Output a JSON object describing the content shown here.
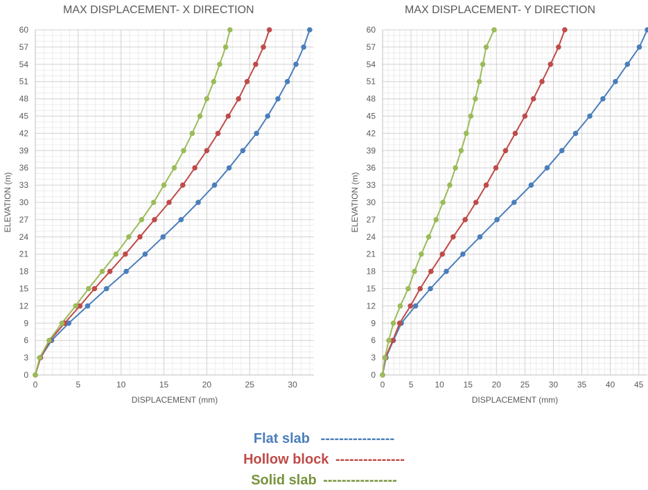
{
  "legend": {
    "entries": [
      {
        "label": "Flat slab",
        "dashes": "----------------",
        "color": "#4a7ebb"
      },
      {
        "label": "Hollow block",
        "dashes": "---------------",
        "color": "#be4b48"
      },
      {
        "label": "Solid slab",
        "dashes": "----------------",
        "color": "#77933c"
      }
    ]
  },
  "chart_data": [
    {
      "type": "line",
      "title": "MAX DISPLACEMENT- X DIRECTION",
      "xlabel": "DISPLACEMENT (mm)",
      "ylabel": "ELEVATION (m)",
      "xlim": [
        0,
        32.5
      ],
      "ylim": [
        0,
        60
      ],
      "x_ticks": [
        0,
        5,
        10,
        15,
        20,
        25,
        30
      ],
      "y_ticks": [
        0,
        3,
        6,
        9,
        12,
        15,
        18,
        21,
        24,
        27,
        30,
        33,
        36,
        39,
        42,
        45,
        48,
        51,
        54,
        57,
        60
      ],
      "grid": true,
      "elevation": [
        0,
        3,
        6,
        9,
        12,
        15,
        18,
        21,
        24,
        27,
        30,
        33,
        36,
        39,
        42,
        45,
        48,
        51,
        54,
        57,
        60
      ],
      "series": [
        {
          "name": "Flat slab",
          "color": "#4a7ebb",
          "x": [
            0,
            0.6,
            1.9,
            3.9,
            6.1,
            8.3,
            10.6,
            12.8,
            14.9,
            17.0,
            19.0,
            20.9,
            22.6,
            24.2,
            25.8,
            27.1,
            28.3,
            29.4,
            30.4,
            31.3,
            32.0
          ]
        },
        {
          "name": "Hollow block",
          "color": "#be4b48",
          "x": [
            0,
            0.6,
            1.7,
            3.4,
            5.2,
            6.9,
            8.7,
            10.5,
            12.2,
            13.9,
            15.6,
            17.2,
            18.6,
            20.0,
            21.3,
            22.5,
            23.7,
            24.7,
            25.7,
            26.6,
            27.3
          ]
        },
        {
          "name": "Solid slab",
          "color": "#9bbb59",
          "x": [
            0,
            0.5,
            1.6,
            3.1,
            4.7,
            6.2,
            7.8,
            9.4,
            10.9,
            12.4,
            13.8,
            15.0,
            16.2,
            17.3,
            18.3,
            19.2,
            20.0,
            20.8,
            21.5,
            22.2,
            22.7
          ]
        }
      ]
    },
    {
      "type": "line",
      "title": "MAX DISPLACEMENT- Y DIRECTION",
      "xlabel": "DISPLACEMENT (mm)",
      "ylabel": "ELEVATION (m)",
      "xlim": [
        0,
        46.5
      ],
      "ylim": [
        0,
        60
      ],
      "x_ticks": [
        0,
        5,
        10,
        15,
        20,
        25,
        30,
        35,
        40,
        45
      ],
      "y_ticks": [
        0,
        3,
        6,
        9,
        12,
        15,
        18,
        21,
        24,
        27,
        30,
        33,
        36,
        39,
        42,
        45,
        48,
        51,
        54,
        57,
        60
      ],
      "grid": true,
      "elevation": [
        0,
        3,
        6,
        9,
        12,
        15,
        18,
        21,
        24,
        27,
        30,
        33,
        36,
        39,
        42,
        45,
        48,
        51,
        54,
        57,
        60
      ],
      "series": [
        {
          "name": "Flat slab",
          "color": "#4a7ebb",
          "x": [
            0,
            0.6,
            1.9,
            3.3,
            5.8,
            8.4,
            11.2,
            14.1,
            17.1,
            20.1,
            23.1,
            26.1,
            28.9,
            31.5,
            33.9,
            36.4,
            38.7,
            40.9,
            43.0,
            45.1,
            46.5
          ]
        },
        {
          "name": "Hollow block",
          "color": "#be4b48",
          "x": [
            0,
            0.5,
            1.8,
            3.0,
            4.9,
            6.6,
            8.5,
            10.5,
            12.4,
            14.5,
            16.4,
            18.2,
            19.9,
            21.6,
            23.3,
            25.0,
            26.5,
            28.0,
            29.5,
            30.9,
            32.0
          ]
        },
        {
          "name": "Solid slab",
          "color": "#9bbb59",
          "x": [
            0,
            0.4,
            1.1,
            1.9,
            3.1,
            4.5,
            5.6,
            6.8,
            8.1,
            9.4,
            10.6,
            11.8,
            12.8,
            13.8,
            14.7,
            15.5,
            16.3,
            17.0,
            17.6,
            18.2,
            19.6
          ]
        }
      ]
    }
  ]
}
